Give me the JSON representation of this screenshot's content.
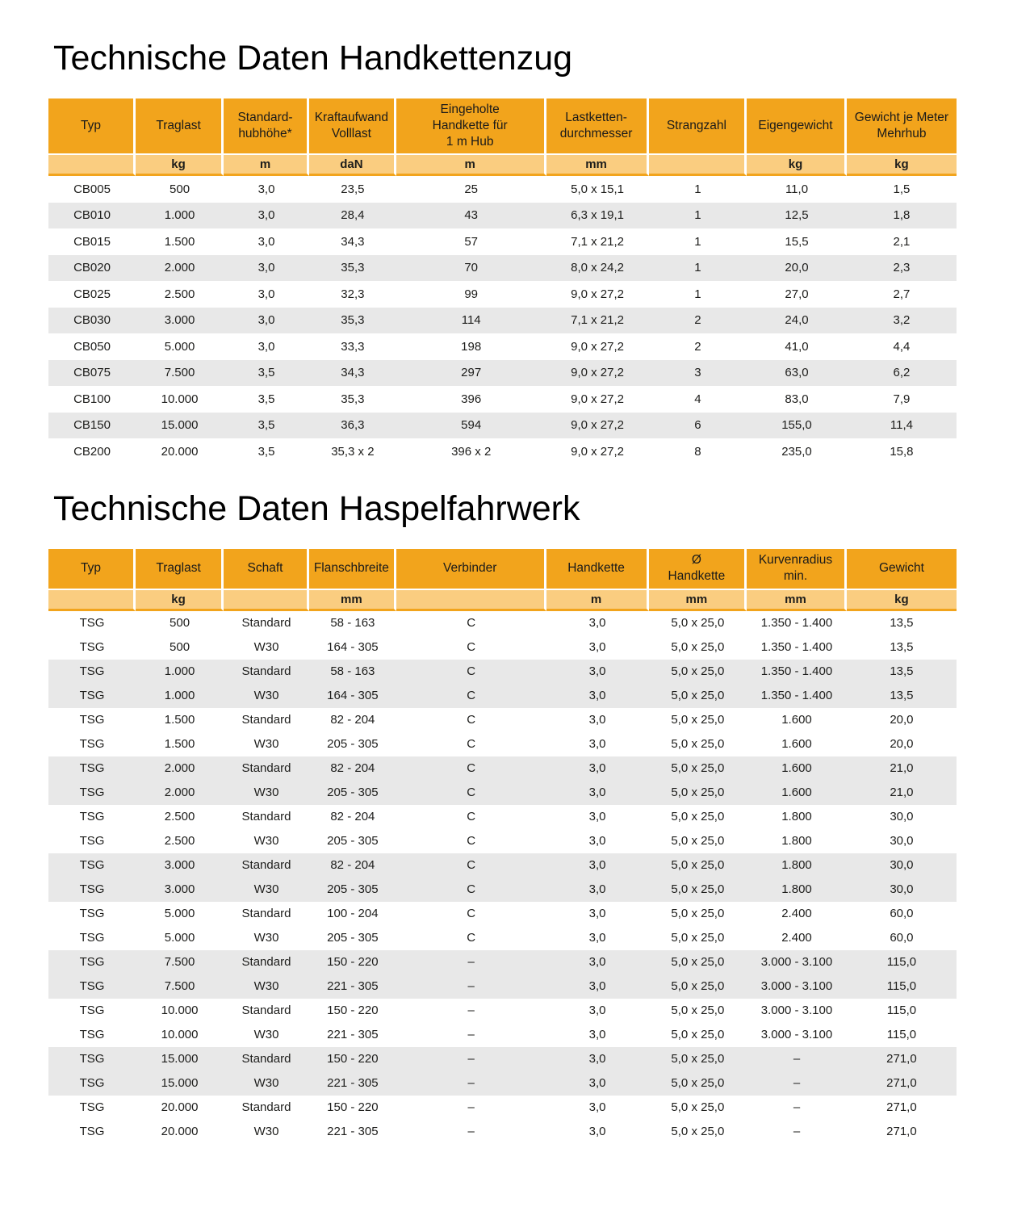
{
  "colors": {
    "header_bg": "#F2A41C",
    "units_bg": "#FACD80",
    "row_alt_bg": "#E8E8E8",
    "text": "#1D1D1B",
    "page_bg": "#FFFFFF"
  },
  "sections": [
    {
      "title": "Technische Daten Handkettenzug",
      "table": {
        "banding": "single",
        "columns": [
          {
            "label": "Typ",
            "unit": ""
          },
          {
            "label": "Traglast",
            "unit": "kg"
          },
          {
            "label": "Standard-\nhubhöhe*",
            "unit": "m"
          },
          {
            "label": "Kraftaufwand\nVolllast",
            "unit": "daN"
          },
          {
            "label": "Eingeholte\nHandkette für\n1 m Hub",
            "unit": "m"
          },
          {
            "label": "Lastketten-\ndurchmesser",
            "unit": "mm"
          },
          {
            "label": "Strangzahl",
            "unit": ""
          },
          {
            "label": "Eigengewicht",
            "unit": "kg"
          },
          {
            "label": "Gewicht je Meter\nMehrhub",
            "unit": "kg"
          }
        ],
        "rows": [
          [
            "CB005",
            "500",
            "3,0",
            "23,5",
            "25",
            "5,0 x 15,1",
            "1",
            "11,0",
            "1,5"
          ],
          [
            "CB010",
            "1.000",
            "3,0",
            "28,4",
            "43",
            "6,3 x 19,1",
            "1",
            "12,5",
            "1,8"
          ],
          [
            "CB015",
            "1.500",
            "3,0",
            "34,3",
            "57",
            "7,1 x 21,2",
            "1",
            "15,5",
            "2,1"
          ],
          [
            "CB020",
            "2.000",
            "3,0",
            "35,3",
            "70",
            "8,0 x 24,2",
            "1",
            "20,0",
            "2,3"
          ],
          [
            "CB025",
            "2.500",
            "3,0",
            "32,3",
            "99",
            "9,0 x 27,2",
            "1",
            "27,0",
            "2,7"
          ],
          [
            "CB030",
            "3.000",
            "3,0",
            "35,3",
            "114",
            "7,1 x 21,2",
            "2",
            "24,0",
            "3,2"
          ],
          [
            "CB050",
            "5.000",
            "3,0",
            "33,3",
            "198",
            "9,0 x 27,2",
            "2",
            "41,0",
            "4,4"
          ],
          [
            "CB075",
            "7.500",
            "3,5",
            "34,3",
            "297",
            "9,0 x 27,2",
            "3",
            "63,0",
            "6,2"
          ],
          [
            "CB100",
            "10.000",
            "3,5",
            "35,3",
            "396",
            "9,0 x 27,2",
            "4",
            "83,0",
            "7,9"
          ],
          [
            "CB150",
            "15.000",
            "3,5",
            "36,3",
            "594",
            "9,0 x 27,2",
            "6",
            "155,0",
            "11,4"
          ],
          [
            "CB200",
            "20.000",
            "3,5",
            "35,3 x 2",
            "396 x 2",
            "9,0 x 27,2",
            "8",
            "235,0",
            "15,8"
          ]
        ]
      }
    },
    {
      "title": "Technische Daten Haspelfahrwerk",
      "table": {
        "banding": "pair",
        "columns": [
          {
            "label": "Typ",
            "unit": ""
          },
          {
            "label": "Traglast",
            "unit": "kg"
          },
          {
            "label": "Schaft",
            "unit": ""
          },
          {
            "label": "Flanschbreite",
            "unit": "mm"
          },
          {
            "label": "Verbinder",
            "unit": ""
          },
          {
            "label": "Handkette",
            "unit": "m"
          },
          {
            "label": "Ø\nHandkette",
            "unit": "mm"
          },
          {
            "label": "Kurvenradius\nmin.",
            "unit": "mm"
          },
          {
            "label": "Gewicht",
            "unit": "kg"
          }
        ],
        "rows": [
          [
            "TSG",
            "500",
            "Standard",
            "58 - 163",
            "C",
            "3,0",
            "5,0 x 25,0",
            "1.350 - 1.400",
            "13,5"
          ],
          [
            "TSG",
            "500",
            "W30",
            "164 - 305",
            "C",
            "3,0",
            "5,0 x 25,0",
            "1.350 - 1.400",
            "13,5"
          ],
          [
            "TSG",
            "1.000",
            "Standard",
            "58 - 163",
            "C",
            "3,0",
            "5,0 x 25,0",
            "1.350 - 1.400",
            "13,5"
          ],
          [
            "TSG",
            "1.000",
            "W30",
            "164 - 305",
            "C",
            "3,0",
            "5,0 x 25,0",
            "1.350 - 1.400",
            "13,5"
          ],
          [
            "TSG",
            "1.500",
            "Standard",
            "82 - 204",
            "C",
            "3,0",
            "5,0 x 25,0",
            "1.600",
            "20,0"
          ],
          [
            "TSG",
            "1.500",
            "W30",
            "205 - 305",
            "C",
            "3,0",
            "5,0 x 25,0",
            "1.600",
            "20,0"
          ],
          [
            "TSG",
            "2.000",
            "Standard",
            "82 - 204",
            "C",
            "3,0",
            "5,0 x 25,0",
            "1.600",
            "21,0"
          ],
          [
            "TSG",
            "2.000",
            "W30",
            "205 - 305",
            "C",
            "3,0",
            "5,0 x 25,0",
            "1.600",
            "21,0"
          ],
          [
            "TSG",
            "2.500",
            "Standard",
            "82 - 204",
            "C",
            "3,0",
            "5,0 x 25,0",
            "1.800",
            "30,0"
          ],
          [
            "TSG",
            "2.500",
            "W30",
            "205 - 305",
            "C",
            "3,0",
            "5,0 x 25,0",
            "1.800",
            "30,0"
          ],
          [
            "TSG",
            "3.000",
            "Standard",
            "82 - 204",
            "C",
            "3,0",
            "5,0 x 25,0",
            "1.800",
            "30,0"
          ],
          [
            "TSG",
            "3.000",
            "W30",
            "205 - 305",
            "C",
            "3,0",
            "5,0 x 25,0",
            "1.800",
            "30,0"
          ],
          [
            "TSG",
            "5.000",
            "Standard",
            "100 - 204",
            "C",
            "3,0",
            "5,0 x 25,0",
            "2.400",
            "60,0"
          ],
          [
            "TSG",
            "5.000",
            "W30",
            "205 - 305",
            "C",
            "3,0",
            "5,0 x 25,0",
            "2.400",
            "60,0"
          ],
          [
            "TSG",
            "7.500",
            "Standard",
            "150 - 220",
            "–",
            "3,0",
            "5,0 x 25,0",
            "3.000 - 3.100",
            "115,0"
          ],
          [
            "TSG",
            "7.500",
            "W30",
            "221 - 305",
            "–",
            "3,0",
            "5,0 x 25,0",
            "3.000 - 3.100",
            "115,0"
          ],
          [
            "TSG",
            "10.000",
            "Standard",
            "150 - 220",
            "–",
            "3,0",
            "5,0 x 25,0",
            "3.000 - 3.100",
            "115,0"
          ],
          [
            "TSG",
            "10.000",
            "W30",
            "221 - 305",
            "–",
            "3,0",
            "5,0 x 25,0",
            "3.000 - 3.100",
            "115,0"
          ],
          [
            "TSG",
            "15.000",
            "Standard",
            "150 - 220",
            "–",
            "3,0",
            "5,0 x 25,0",
            "–",
            "271,0"
          ],
          [
            "TSG",
            "15.000",
            "W30",
            "221 - 305",
            "–",
            "3,0",
            "5,0 x 25,0",
            "–",
            "271,0"
          ],
          [
            "TSG",
            "20.000",
            "Standard",
            "150 - 220",
            "–",
            "3,0",
            "5,0 x 25,0",
            "–",
            "271,0"
          ],
          [
            "TSG",
            "20.000",
            "W30",
            "221 - 305",
            "–",
            "3,0",
            "5,0 x 25,0",
            "–",
            "271,0"
          ]
        ]
      }
    }
  ]
}
